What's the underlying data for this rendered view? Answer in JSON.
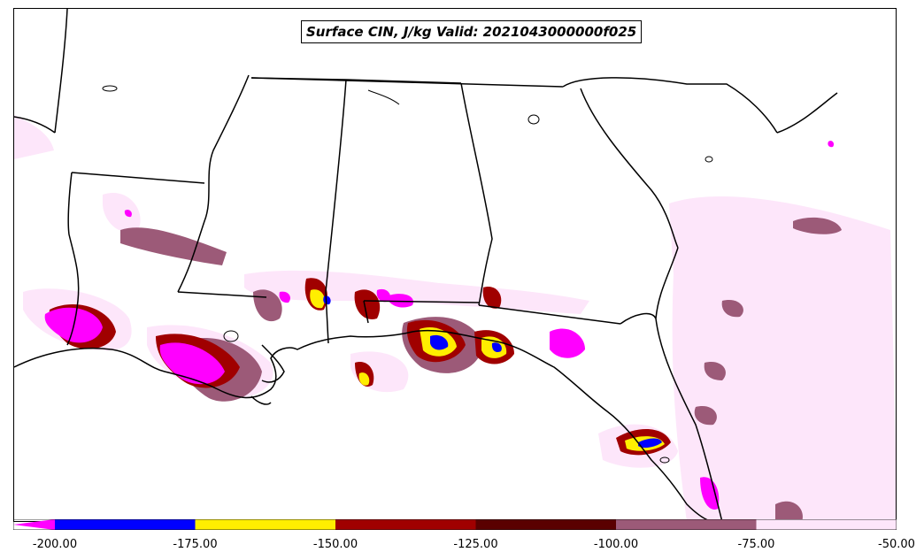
{
  "title": "Surface CIN, J/kg Valid: 2021043000000f025",
  "colorbar": {
    "ticks": [
      "-200.00",
      "-175.00",
      "-150.00",
      "-125.00",
      "-100.00",
      "-75.00",
      "-50.00"
    ],
    "bins": [
      {
        "from": -225,
        "to": -200,
        "color": "#ff00ff"
      },
      {
        "from": -200,
        "to": -175,
        "color": "#0000ff"
      },
      {
        "from": -175,
        "to": -150,
        "color": "#ffee00"
      },
      {
        "from": -150,
        "to": -125,
        "color": "#a00000"
      },
      {
        "from": -125,
        "to": -100,
        "color": "#5a0000"
      },
      {
        "from": -100,
        "to": -75,
        "color": "#9c5a78"
      },
      {
        "from": -75,
        "to": -50,
        "color": "#fde6fa"
      }
    ]
  }
}
